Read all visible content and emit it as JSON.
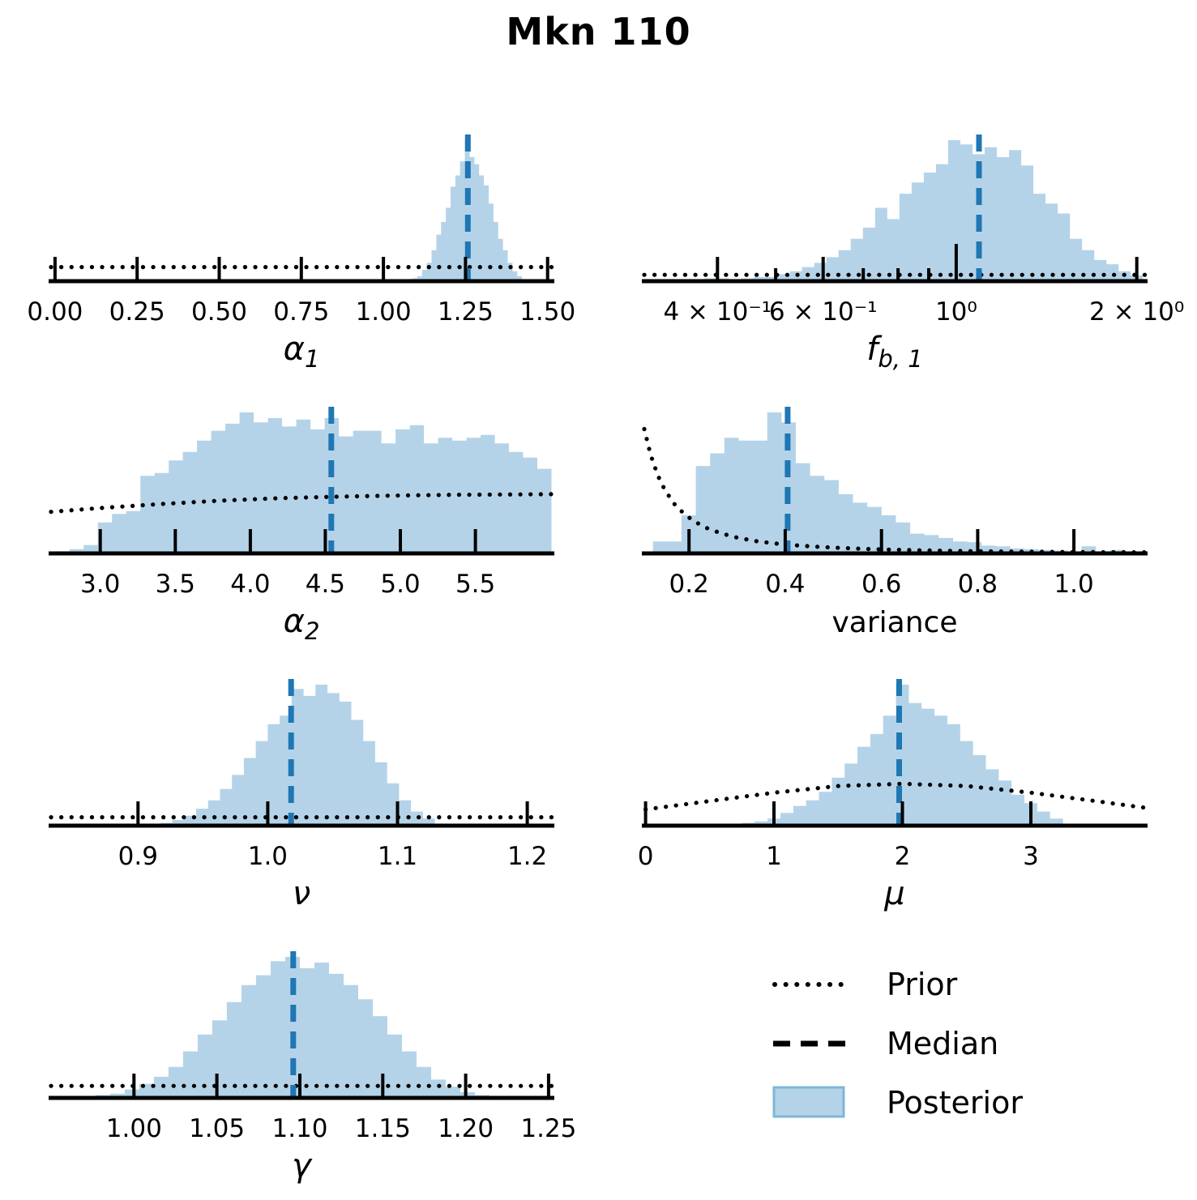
{
  "colors": {
    "posterior_fill": "#b5d3e8",
    "posterior_edge": "#7eb7d8",
    "median_line": "#1f77b4",
    "prior_line": "#000000",
    "axis": "#000000"
  },
  "legend": {
    "items": [
      {
        "sample": "dotted-line",
        "label": "Prior"
      },
      {
        "sample": "dashed-line",
        "label": "Median"
      },
      {
        "sample": "filled-patch",
        "label": "Posterior"
      }
    ]
  },
  "chart_data": {
    "figure_title": "Mkn 110",
    "type": "histogram-grid",
    "description_note": "Posterior histograms (filled), dotted prior curves, dashed median lines",
    "subplots": [
      {
        "id": "alpha1",
        "row": 1,
        "col": 1,
        "type": "bar",
        "xlabel": {
          "main": "α",
          "sub": "1",
          "italic": true
        },
        "xscale": "linear",
        "domain": [
          -0.012,
          1.513
        ],
        "ticks": [
          {
            "v": 0.0,
            "label": "0.00"
          },
          {
            "v": 0.25,
            "label": "0.25"
          },
          {
            "v": 0.5,
            "label": "0.50"
          },
          {
            "v": 0.75,
            "label": "0.75"
          },
          {
            "v": 1.0,
            "label": "1.00"
          },
          {
            "v": 1.25,
            "label": "1.25"
          },
          {
            "v": 1.5,
            "label": "1.50"
          }
        ],
        "minor_ticks": [],
        "bins": {
          "start": 1.045,
          "width": 0.0145,
          "heights": [
            0.01,
            0.01,
            0.015,
            0.02,
            0.035,
            0.08,
            0.13,
            0.22,
            0.33,
            0.42,
            0.52,
            0.67,
            0.75,
            0.85,
            1.0,
            0.88,
            0.83,
            0.75,
            0.68,
            0.55,
            0.42,
            0.3,
            0.22,
            0.13,
            0.07,
            0.035
          ]
        },
        "median": 1.257,
        "prior": {
          "type": "flat",
          "level": 0.1
        }
      },
      {
        "id": "fb1",
        "row": 1,
        "col": 2,
        "type": "bar",
        "xlabel": {
          "main": "f",
          "sub": "b, 1",
          "italic": true
        },
        "xscale": "log10",
        "domain": [
          -0.52,
          0.315
        ],
        "ticks": [
          {
            "v": -0.39794,
            "label": "4 × 10⁻¹"
          },
          {
            "v": -0.22185,
            "label": "6 × 10⁻¹"
          },
          {
            "v": 0.0,
            "label": "10⁰",
            "tall": true
          },
          {
            "v": 0.30103,
            "label": "2 × 10⁰"
          }
        ],
        "minor_ticks": [
          -0.30103,
          -0.1549,
          -0.09691,
          -0.04576
        ],
        "bins": {
          "start": -0.46,
          "width": 0.0203,
          "heights": [
            0.01,
            0.01,
            0.02,
            0.02,
            0.01,
            0.02,
            0.03,
            0.03,
            0.05,
            0.07,
            0.1,
            0.13,
            0.17,
            0.22,
            0.3,
            0.38,
            0.52,
            0.44,
            0.62,
            0.7,
            0.77,
            0.83,
            1.0,
            0.97,
            0.9,
            0.95,
            0.88,
            0.93,
            0.82,
            0.62,
            0.55,
            0.48,
            0.3,
            0.22,
            0.15,
            0.12,
            0.07,
            0.04
          ]
        },
        "median": 0.038,
        "prior": {
          "type": "flat",
          "level": 0.045
        }
      },
      {
        "id": "alpha2",
        "row": 2,
        "col": 1,
        "type": "bar",
        "xlabel": {
          "main": "α",
          "sub": "2",
          "italic": true
        },
        "xscale": "linear",
        "domain": [
          2.672,
          6.01
        ],
        "ticks": [
          {
            "v": 3.0,
            "label": "3.0"
          },
          {
            "v": 3.5,
            "label": "3.5"
          },
          {
            "v": 4.0,
            "label": "4.0"
          },
          {
            "v": 4.5,
            "label": "4.5"
          },
          {
            "v": 5.0,
            "label": "5.0"
          },
          {
            "v": 5.5,
            "label": "5.5"
          }
        ],
        "minor_ticks": [],
        "bins": {
          "start": 2.7,
          "width": 0.0945,
          "heights": [
            0.015,
            0.03,
            0.06,
            0.22,
            0.28,
            0.3,
            0.55,
            0.57,
            0.66,
            0.72,
            0.8,
            0.87,
            0.92,
            1.0,
            0.93,
            0.96,
            0.9,
            0.95,
            0.88,
            0.96,
            0.83,
            0.87,
            0.87,
            0.78,
            0.88,
            0.91,
            0.78,
            0.82,
            0.8,
            0.82,
            0.84,
            0.78,
            0.72,
            0.68,
            0.6
          ]
        },
        "median": 4.54,
        "prior": {
          "type": "curve",
          "points": [
            [
              2.672,
              0.295
            ],
            [
              3.0,
              0.322
            ],
            [
              3.4,
              0.35
            ],
            [
              3.8,
              0.374
            ],
            [
              4.2,
              0.392
            ],
            [
              4.6,
              0.403
            ],
            [
              5.0,
              0.411
            ],
            [
              5.4,
              0.416
            ],
            [
              5.7,
              0.418
            ],
            [
              6.01,
              0.42
            ]
          ]
        }
      },
      {
        "id": "variance",
        "row": 2,
        "col": 2,
        "type": "bar",
        "xlabel": {
          "main": "variance",
          "sub": "",
          "italic": false
        },
        "xscale": "linear",
        "domain": [
          0.107,
          1.148
        ],
        "ticks": [
          {
            "v": 0.2,
            "label": "0.2"
          },
          {
            "v": 0.4,
            "label": "0.4"
          },
          {
            "v": 0.6,
            "label": "0.6"
          },
          {
            "v": 0.8,
            "label": "0.8"
          },
          {
            "v": 1.0,
            "label": "1.0"
          }
        ],
        "minor_ticks": [],
        "bins": {
          "start": 0.125,
          "width": 0.0297,
          "heights": [
            0.085,
            0.085,
            0.27,
            0.62,
            0.71,
            0.82,
            0.8,
            0.8,
            1.0,
            0.93,
            0.64,
            0.55,
            0.52,
            0.42,
            0.36,
            0.33,
            0.27,
            0.22,
            0.14,
            0.13,
            0.11,
            0.085,
            0.08,
            0.055,
            0.05,
            0.035,
            0.03,
            0.025,
            0.02,
            0.015,
            0.05,
            0.015,
            0.025,
            0.01
          ]
        },
        "median": 0.405,
        "prior": {
          "type": "curve",
          "points": [
            [
              0.107,
              0.882
            ],
            [
              0.12,
              0.701
            ],
            [
              0.135,
              0.554
            ],
            [
              0.15,
              0.449
            ],
            [
              0.17,
              0.349
            ],
            [
              0.19,
              0.28
            ],
            [
              0.21,
              0.229
            ],
            [
              0.24,
              0.175
            ],
            [
              0.27,
              0.139
            ],
            [
              0.3,
              0.112
            ],
            [
              0.34,
              0.087
            ],
            [
              0.38,
              0.07
            ],
            [
              0.43,
              0.055
            ],
            [
              0.48,
              0.044
            ],
            [
              0.54,
              0.035
            ],
            [
              0.6,
              0.028
            ],
            [
              0.68,
              0.022
            ],
            [
              0.76,
              0.017
            ],
            [
              0.85,
              0.014
            ],
            [
              0.95,
              0.011
            ],
            [
              1.05,
              0.009
            ],
            [
              1.148,
              0.008
            ]
          ]
        }
      },
      {
        "id": "nu",
        "row": 3,
        "col": 1,
        "type": "bar",
        "xlabel": {
          "main": "ν",
          "sub": "",
          "italic": true
        },
        "xscale": "linear",
        "domain": [
          0.833,
          1.219
        ],
        "ticks": [
          {
            "v": 0.9,
            "label": "0.9"
          },
          {
            "v": 1.0,
            "label": "1.0"
          },
          {
            "v": 1.1,
            "label": "1.1"
          },
          {
            "v": 1.2,
            "label": "1.2"
          }
        ],
        "minor_ticks": [],
        "bins": {
          "start": 0.908,
          "width": 0.0092,
          "heights": [
            0.01,
            0.02,
            0.04,
            0.07,
            0.12,
            0.18,
            0.26,
            0.36,
            0.48,
            0.6,
            0.72,
            0.78,
            0.97,
            0.92,
            1.0,
            0.94,
            0.88,
            0.75,
            0.6,
            0.45,
            0.3,
            0.18,
            0.1,
            0.05
          ]
        },
        "median": 1.018,
        "prior": {
          "type": "flat",
          "level": 0.06
        }
      },
      {
        "id": "mu",
        "row": 3,
        "col": 2,
        "type": "bar",
        "xlabel": {
          "main": "μ",
          "sub": "",
          "italic": true
        },
        "xscale": "linear",
        "domain": [
          -0.01,
          3.89
        ],
        "ticks": [
          {
            "v": 0,
            "label": "0"
          },
          {
            "v": 1,
            "label": "1"
          },
          {
            "v": 2,
            "label": "2"
          },
          {
            "v": 3,
            "label": "3"
          }
        ],
        "minor_ticks": [],
        "bins": {
          "start": 0.55,
          "width": 0.1,
          "heights": [
            0.01,
            0.01,
            0.02,
            0.03,
            0.05,
            0.09,
            0.14,
            0.18,
            0.24,
            0.34,
            0.44,
            0.56,
            0.65,
            0.78,
            1.0,
            0.87,
            0.83,
            0.78,
            0.72,
            0.6,
            0.5,
            0.4,
            0.32,
            0.22,
            0.16,
            0.1,
            0.05
          ]
        },
        "median": 1.975,
        "prior": {
          "type": "curve",
          "points": [
            [
              0,
              0.115
            ],
            [
              0.5,
              0.175
            ],
            [
              1.0,
              0.234
            ],
            [
              1.5,
              0.281
            ],
            [
              2.0,
              0.297
            ],
            [
              2.5,
              0.281
            ],
            [
              3.0,
              0.234
            ],
            [
              3.5,
              0.175
            ],
            [
              3.89,
              0.127
            ]
          ]
        }
      },
      {
        "id": "gamma",
        "row": 4,
        "col": 1,
        "type": "bar",
        "xlabel": {
          "main": "γ",
          "sub": "",
          "italic": true
        },
        "xscale": "linear",
        "domain": [
          0.95,
          1.252
        ],
        "ticks": [
          {
            "v": 1.0,
            "label": "1.00"
          },
          {
            "v": 1.05,
            "label": "1.05"
          },
          {
            "v": 1.1,
            "label": "1.10"
          },
          {
            "v": 1.15,
            "label": "1.15"
          },
          {
            "v": 1.2,
            "label": "1.20"
          },
          {
            "v": 1.25,
            "label": "1.25"
          }
        ],
        "minor_ticks": [],
        "bins": {
          "start": 0.968,
          "width": 0.0088,
          "heights": [
            0.01,
            0.02,
            0.03,
            0.06,
            0.1,
            0.15,
            0.22,
            0.33,
            0.45,
            0.55,
            0.68,
            0.8,
            0.87,
            0.97,
            1.0,
            0.92,
            0.96,
            0.88,
            0.8,
            0.7,
            0.58,
            0.45,
            0.33,
            0.22,
            0.13,
            0.08,
            0.04,
            0.02
          ]
        },
        "median": 1.096,
        "prior": {
          "type": "flat",
          "level": 0.085
        }
      }
    ]
  }
}
